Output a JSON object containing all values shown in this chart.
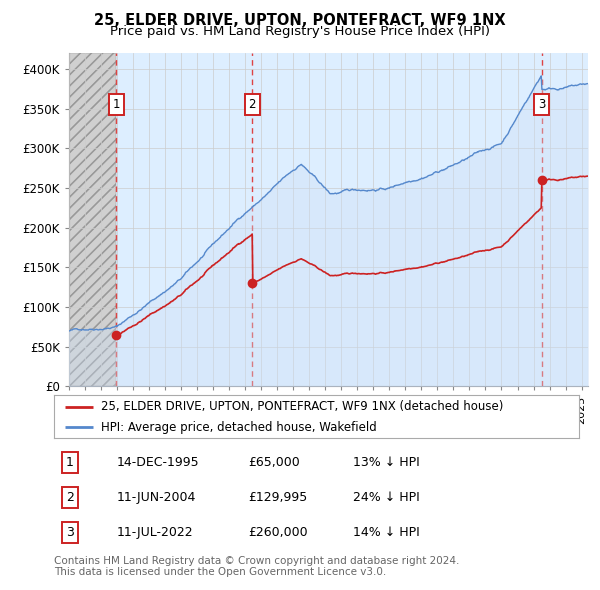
{
  "title": "25, ELDER DRIVE, UPTON, PONTEFRACT, WF9 1NX",
  "subtitle": "Price paid vs. HM Land Registry's House Price Index (HPI)",
  "ylim": [
    0,
    420000
  ],
  "yticks": [
    0,
    50000,
    100000,
    150000,
    200000,
    250000,
    300000,
    350000,
    400000
  ],
  "ytick_labels": [
    "£0",
    "£50K",
    "£100K",
    "£150K",
    "£200K",
    "£250K",
    "£300K",
    "£350K",
    "£400K"
  ],
  "hpi_color": "#5588cc",
  "hpi_fill_color": "#ccdff5",
  "price_color": "#cc2222",
  "vline_color": "#dd4444",
  "annotation_box_color": "#cc2222",
  "grid_color": "#cccccc",
  "plot_bg": "#ddeeff",
  "hatch_bg": "#d0d0d0",
  "xmin": 1993,
  "xmax": 2025.4,
  "sales": [
    {
      "date_num": 1995.95,
      "price": 65000,
      "label": "1"
    },
    {
      "date_num": 2004.44,
      "price": 129995,
      "label": "2"
    },
    {
      "date_num": 2022.52,
      "price": 260000,
      "label": "3"
    }
  ],
  "legend_entries": [
    "25, ELDER DRIVE, UPTON, PONTEFRACT, WF9 1NX (detached house)",
    "HPI: Average price, detached house, Wakefield"
  ],
  "table_rows": [
    [
      "1",
      "14-DEC-1995",
      "£65,000",
      "13% ↓ HPI"
    ],
    [
      "2",
      "11-JUN-2004",
      "£129,995",
      "24% ↓ HPI"
    ],
    [
      "3",
      "11-JUL-2022",
      "£260,000",
      "14% ↓ HPI"
    ]
  ],
  "footer": "Contains HM Land Registry data © Crown copyright and database right 2024.\nThis data is licensed under the Open Government Licence v3.0.",
  "title_fontsize": 10.5,
  "subtitle_fontsize": 9.5,
  "tick_fontsize": 8.5,
  "legend_fontsize": 8.5,
  "table_fontsize": 9,
  "footer_fontsize": 7.5
}
